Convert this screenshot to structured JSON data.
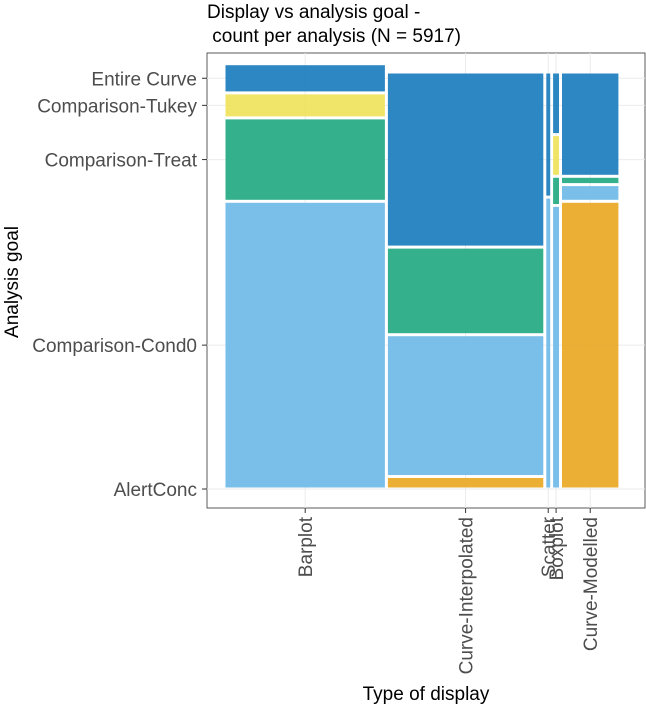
{
  "chart_data": {
    "type": "mosaic",
    "title": [
      "Display vs analysis goal -",
      " count per analysis (N = 5917)"
    ],
    "xlabel": "Type of display",
    "ylabel": "Analysis goal",
    "categories": [
      "Barplot",
      "Curve-Interpolated",
      "Scatter",
      "Boxplot",
      "Curve-Modelled"
    ],
    "x_proportions": [
      0.402,
      0.392,
      0.017,
      0.022,
      0.147
    ],
    "goals": [
      "AlertConc",
      "Comparison-Cond0",
      "Comparison-Treat",
      "Comparison-Tukey",
      "Entire Curve"
    ],
    "goal_colors": {
      "AlertConc": "#E9A825",
      "Comparison-Cond0": "#6FBAE8",
      "Comparison-Treat": "#24A982",
      "Comparison-Tukey": "#F0E35C",
      "Entire Curve": "#1A7DBE"
    },
    "cells": {
      "Barplot": [
        0.0,
        0.69,
        0.2,
        0.06,
        0.07
      ],
      "Curve-Interpolated": [
        0.03,
        0.34,
        0.21,
        0.0,
        0.42
      ],
      "Scatter": [
        0.0,
        0.7,
        0.0,
        0.0,
        0.3
      ],
      "Boxplot": [
        0.0,
        0.68,
        0.07,
        0.1,
        0.15
      ],
      "Curve-Modelled": [
        0.69,
        0.04,
        0.02,
        0.0,
        0.25
      ]
    },
    "y_ticks": [
      "AlertConc",
      "Comparison-Cond0",
      "Comparison-Treat",
      "Comparison-Tukey",
      "Entire Curve"
    ],
    "grid": true,
    "legend": "none"
  }
}
